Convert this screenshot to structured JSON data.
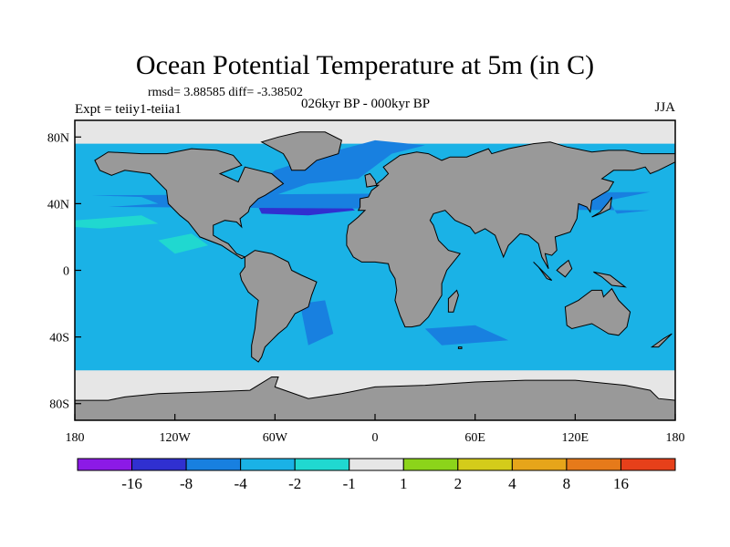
{
  "title": "Ocean Potential Temperature at 5m (in C)",
  "stats_text": "rmsd= 3.88585 diff= -3.38502",
  "left_label": "Expt = teiiy1-teiia1",
  "center_label": "026kyr BP - 000kyr BP",
  "right_label": "JJA",
  "map": {
    "lon_range": [
      -180,
      180
    ],
    "lat_range": [
      -90,
      90
    ],
    "x_ticks": [
      {
        "lon": -180,
        "label": "180"
      },
      {
        "lon": -120,
        "label": "120W"
      },
      {
        "lon": -60,
        "label": "60W"
      },
      {
        "lon": 0,
        "label": "0"
      },
      {
        "lon": 60,
        "label": "60E"
      },
      {
        "lon": 120,
        "label": "120E"
      },
      {
        "lon": 180,
        "label": "180"
      }
    ],
    "y_ticks": [
      {
        "lat": 80,
        "label": "80N"
      },
      {
        "lat": 40,
        "label": "40N"
      },
      {
        "lat": 0,
        "label": "0"
      },
      {
        "lat": -40,
        "label": "40S"
      },
      {
        "lat": -80,
        "label": "80S"
      }
    ],
    "colors": {
      "land": "#999999",
      "ocean_dominant": "#1ab2e6",
      "ocean_cold": "#1880e0",
      "ocean_very_cold": "#3030d0",
      "ocean_mild": "#20d8d0",
      "near_zero": "#e6e6e6"
    }
  },
  "colorbar": {
    "colors": [
      "#8c1ae6",
      "#3030d0",
      "#1880e0",
      "#1ab2e6",
      "#20d8d0",
      "#e6e6e6",
      "#8cd41a",
      "#d4cc1a",
      "#e6a51a",
      "#e67a1a",
      "#e6401a"
    ],
    "labels": [
      "-16",
      "-8",
      "-4",
      "-2",
      "-1",
      "1",
      "2",
      "4",
      "8",
      "16"
    ]
  }
}
